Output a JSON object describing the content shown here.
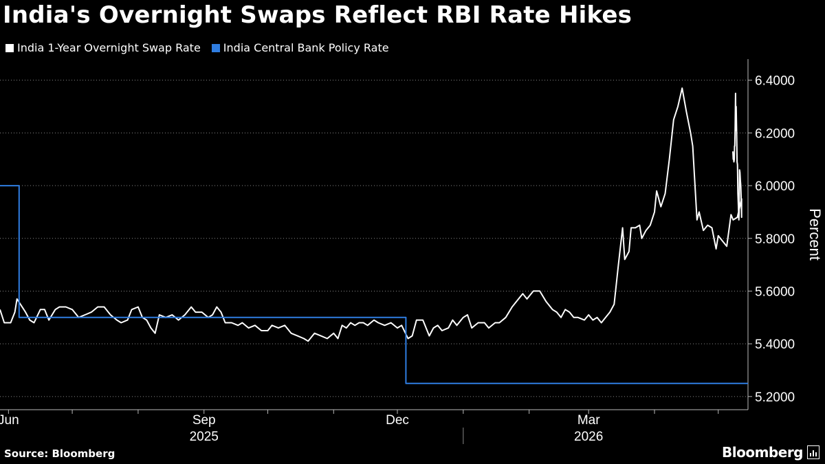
{
  "title": "India's Overnight Swaps Reflect RBI Rate Hikes",
  "legend": [
    {
      "label": "India 1-Year Overnight Swap Rate",
      "color": "#ffffff"
    },
    {
      "label": "India Central Bank Policy Rate",
      "color": "#2f7de1"
    }
  ],
  "footer": {
    "source": "Source: Bloomberg",
    "brand": "Bloomberg"
  },
  "chart_data": {
    "type": "line",
    "ylabel": "Percent",
    "ylim": [
      5.15,
      6.48
    ],
    "yticks": [
      5.2,
      5.4,
      5.6,
      5.8,
      6.0,
      6.2,
      6.4
    ],
    "ytick_labels": [
      "5.2000",
      "5.4000",
      "5.6000",
      "5.8000",
      "6.0000",
      "6.2000",
      "6.4000"
    ],
    "xlim": [
      "2025-05-28",
      "2026-05-15"
    ],
    "month_ticks": [
      "2025-06-01",
      "2025-07-01",
      "2025-08-01",
      "2025-09-01",
      "2025-10-01",
      "2025-11-01",
      "2025-12-01",
      "2026-01-01",
      "2026-02-01",
      "2026-03-01",
      "2026-04-01",
      "2026-05-01"
    ],
    "x_labels": [
      {
        "text": "Jun",
        "date": "2025-06-01"
      },
      {
        "text": "Sep",
        "date": "2025-09-01"
      },
      {
        "text": "Dec",
        "date": "2025-12-01"
      },
      {
        "text": "Mar",
        "date": "2026-03-01"
      }
    ],
    "year_labels": [
      {
        "text": "2025",
        "date": "2025-09-01"
      },
      {
        "text": "2026",
        "date": "2026-03-01"
      }
    ],
    "year_separator": "2026-01-01",
    "grid": "horizontal dotted",
    "legend_position": "top-left",
    "series": [
      {
        "name": "India 1-Year Overnight Swap Rate",
        "color": "#ffffff",
        "points": [
          [
            "2025-05-28",
            5.53
          ],
          [
            "2025-05-30",
            5.48
          ],
          [
            "2025-06-02",
            5.48
          ],
          [
            "2025-06-04",
            5.52
          ],
          [
            "2025-06-05",
            5.57
          ],
          [
            "2025-06-09",
            5.52
          ],
          [
            "2025-06-11",
            5.49
          ],
          [
            "2025-06-13",
            5.48
          ],
          [
            "2025-06-16",
            5.53
          ],
          [
            "2025-06-18",
            5.53
          ],
          [
            "2025-06-20",
            5.49
          ],
          [
            "2025-06-23",
            5.53
          ],
          [
            "2025-06-25",
            5.54
          ],
          [
            "2025-06-28",
            5.54
          ],
          [
            "2025-07-01",
            5.53
          ],
          [
            "2025-07-04",
            5.5
          ],
          [
            "2025-07-07",
            5.51
          ],
          [
            "2025-07-10",
            5.52
          ],
          [
            "2025-07-13",
            5.54
          ],
          [
            "2025-07-16",
            5.54
          ],
          [
            "2025-07-19",
            5.51
          ],
          [
            "2025-07-22",
            5.49
          ],
          [
            "2025-07-24",
            5.48
          ],
          [
            "2025-07-27",
            5.49
          ],
          [
            "2025-07-29",
            5.53
          ],
          [
            "2025-08-01",
            5.54
          ],
          [
            "2025-08-03",
            5.5
          ],
          [
            "2025-08-05",
            5.49
          ],
          [
            "2025-08-07",
            5.46
          ],
          [
            "2025-08-09",
            5.44
          ],
          [
            "2025-08-11",
            5.51
          ],
          [
            "2025-08-14",
            5.5
          ],
          [
            "2025-08-17",
            5.51
          ],
          [
            "2025-08-20",
            5.49
          ],
          [
            "2025-08-23",
            5.51
          ],
          [
            "2025-08-26",
            5.54
          ],
          [
            "2025-08-28",
            5.52
          ],
          [
            "2025-08-31",
            5.52
          ],
          [
            "2025-09-03",
            5.5
          ],
          [
            "2025-09-05",
            5.51
          ],
          [
            "2025-09-07",
            5.54
          ],
          [
            "2025-09-09",
            5.52
          ],
          [
            "2025-09-11",
            5.48
          ],
          [
            "2025-09-14",
            5.48
          ],
          [
            "2025-09-17",
            5.47
          ],
          [
            "2025-09-19",
            5.48
          ],
          [
            "2025-09-22",
            5.46
          ],
          [
            "2025-09-25",
            5.47
          ],
          [
            "2025-09-28",
            5.45
          ],
          [
            "2025-10-01",
            5.45
          ],
          [
            "2025-10-03",
            5.47
          ],
          [
            "2025-10-06",
            5.46
          ],
          [
            "2025-10-09",
            5.47
          ],
          [
            "2025-10-12",
            5.44
          ],
          [
            "2025-10-15",
            5.43
          ],
          [
            "2025-10-18",
            5.42
          ],
          [
            "2025-10-20",
            5.41
          ],
          [
            "2025-10-23",
            5.44
          ],
          [
            "2025-10-26",
            5.43
          ],
          [
            "2025-10-29",
            5.42
          ],
          [
            "2025-11-01",
            5.44
          ],
          [
            "2025-11-03",
            5.42
          ],
          [
            "2025-11-05",
            5.47
          ],
          [
            "2025-11-07",
            5.46
          ],
          [
            "2025-11-09",
            5.48
          ],
          [
            "2025-11-11",
            5.47
          ],
          [
            "2025-11-13",
            5.48
          ],
          [
            "2025-11-15",
            5.48
          ],
          [
            "2025-11-17",
            5.47
          ],
          [
            "2025-11-20",
            5.49
          ],
          [
            "2025-11-22",
            5.48
          ],
          [
            "2025-11-25",
            5.47
          ],
          [
            "2025-11-28",
            5.48
          ],
          [
            "2025-12-01",
            5.46
          ],
          [
            "2025-12-03",
            5.47
          ],
          [
            "2025-12-06",
            5.42
          ],
          [
            "2025-12-08",
            5.43
          ],
          [
            "2025-12-10",
            5.49
          ],
          [
            "2025-12-13",
            5.49
          ],
          [
            "2025-12-16",
            5.43
          ],
          [
            "2025-12-18",
            5.46
          ],
          [
            "2025-12-20",
            5.47
          ],
          [
            "2025-12-22",
            5.45
          ],
          [
            "2025-12-25",
            5.46
          ],
          [
            "2025-12-27",
            5.49
          ],
          [
            "2025-12-29",
            5.47
          ],
          [
            "2026-01-01",
            5.5
          ],
          [
            "2026-01-03",
            5.51
          ],
          [
            "2026-01-05",
            5.46
          ],
          [
            "2026-01-08",
            5.48
          ],
          [
            "2026-01-11",
            5.48
          ],
          [
            "2026-01-13",
            5.46
          ],
          [
            "2026-01-16",
            5.48
          ],
          [
            "2026-01-18",
            5.48
          ],
          [
            "2026-01-21",
            5.5
          ],
          [
            "2026-01-24",
            5.54
          ],
          [
            "2026-01-27",
            5.57
          ],
          [
            "2026-01-29",
            5.59
          ],
          [
            "2026-01-31",
            5.57
          ],
          [
            "2026-02-03",
            5.6
          ],
          [
            "2026-02-06",
            5.6
          ],
          [
            "2026-02-09",
            5.56
          ],
          [
            "2026-02-12",
            5.53
          ],
          [
            "2026-02-14",
            5.52
          ],
          [
            "2026-02-16",
            5.5
          ],
          [
            "2026-02-18",
            5.53
          ],
          [
            "2026-02-20",
            5.52
          ],
          [
            "2026-02-22",
            5.5
          ],
          [
            "2026-02-24",
            5.5
          ],
          [
            "2026-02-27",
            5.49
          ],
          [
            "2026-03-01",
            5.51
          ],
          [
            "2026-03-03",
            5.49
          ],
          [
            "2026-03-05",
            5.5
          ],
          [
            "2026-03-07",
            5.48
          ],
          [
            "2026-03-09",
            5.5
          ],
          [
            "2026-03-11",
            5.52
          ],
          [
            "2026-03-13",
            5.55
          ],
          [
            "2026-03-15",
            5.7
          ],
          [
            "2026-03-17",
            5.84
          ],
          [
            "2026-03-18",
            5.72
          ],
          [
            "2026-03-20",
            5.75
          ],
          [
            "2026-03-21",
            5.84
          ],
          [
            "2026-03-23",
            5.84
          ],
          [
            "2026-03-25",
            5.85
          ],
          [
            "2026-03-26",
            5.8
          ],
          [
            "2026-03-28",
            5.83
          ],
          [
            "2026-03-30",
            5.85
          ],
          [
            "2026-04-01",
            5.9
          ],
          [
            "2026-04-02",
            5.98
          ],
          [
            "2026-04-04",
            5.92
          ],
          [
            "2026-04-06",
            5.97
          ],
          [
            "2026-04-08",
            6.1
          ],
          [
            "2026-04-10",
            6.25
          ],
          [
            "2026-04-12",
            6.3
          ],
          [
            "2026-04-14",
            6.37
          ],
          [
            "2026-04-16",
            6.28
          ],
          [
            "2026-04-18",
            6.2
          ],
          [
            "2026-04-19",
            6.15
          ],
          [
            "2026-04-21",
            5.87
          ],
          [
            "2026-04-22",
            5.9
          ],
          [
            "2026-04-24",
            5.83
          ],
          [
            "2026-04-26",
            5.85
          ],
          [
            "2026-04-28",
            5.84
          ],
          [
            "2026-04-30",
            5.76
          ],
          [
            "2026-05-01",
            5.81
          ],
          [
            "2026-05-03",
            5.79
          ],
          [
            "2026-05-05",
            5.77
          ],
          [
            "2026-05-07",
            5.89
          ],
          [
            "2026-05-08",
            5.87
          ],
          [
            "2026-05-10",
            5.88
          ],
          [
            "2026-05-12",
            5.95
          ]
        ],
        "tail_points": [
          [
            1.0,
            5.88
          ],
          [
            1.01,
            5.95
          ],
          [
            1.02,
            6.0
          ],
          [
            1.03,
            6.02
          ],
          [
            1.04,
            6.05
          ],
          [
            1.05,
            6.06
          ],
          [
            1.06,
            5.9
          ],
          [
            1.066,
            5.87
          ],
          [
            1.08,
            5.93
          ],
          [
            1.09,
            5.97
          ],
          [
            1.1,
            6.08
          ],
          [
            1.11,
            6.09
          ],
          [
            1.12,
            6.2
          ],
          [
            1.13,
            6.3
          ],
          [
            1.138,
            6.21
          ],
          [
            1.146,
            6.35
          ],
          [
            1.156,
            6.22
          ],
          [
            1.164,
            6.15
          ],
          [
            1.17,
            6.15
          ],
          [
            1.176,
            6.1
          ],
          [
            1.186,
            6.09
          ],
          [
            1.196,
            6.11
          ],
          [
            1.202,
            6.1
          ],
          [
            1.21,
            6.13
          ]
        ]
      },
      {
        "name": "India Central Bank Policy Rate",
        "color": "#2f7de1",
        "step": true,
        "points": [
          [
            "2025-05-28",
            6.0
          ],
          [
            "2025-06-06",
            5.5
          ],
          [
            "2025-12-05",
            5.25
          ],
          [
            "2026-05-15",
            5.25
          ]
        ]
      }
    ]
  }
}
